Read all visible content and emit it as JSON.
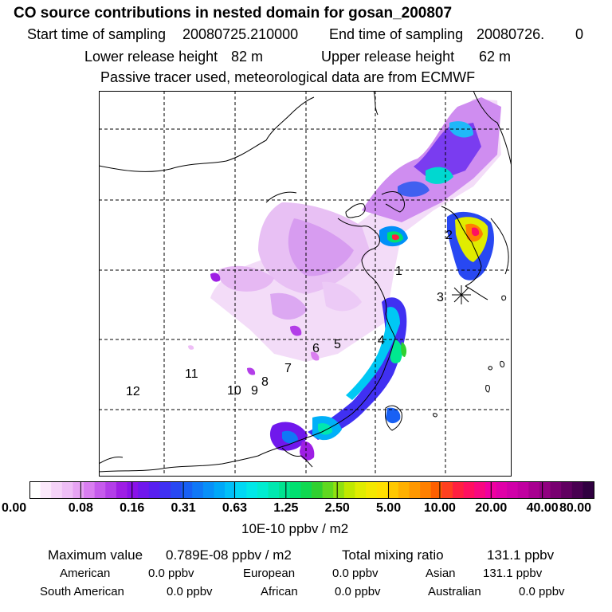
{
  "header": {
    "title": "CO  source contributions in nested domain for gosan_200807",
    "start_label": "Start time of sampling",
    "start_value": "20080725.210000",
    "end_label": "End time of sampling",
    "end_value": "20080726.",
    "end_suffix": "0",
    "lower_label": "Lower release height",
    "lower_value": "82 m",
    "upper_label": "Upper release height",
    "upper_value": "62 m",
    "note": "Passive tracer used, meteorological data are from ECMWF"
  },
  "map": {
    "receptor_label": "3",
    "source_regions": [
      "1",
      "2",
      "3",
      "4",
      "5",
      "6",
      "7",
      "8",
      "9",
      "10",
      "11",
      "12"
    ]
  },
  "colorbar": {
    "tick_labels": [
      "0.00",
      "0.08",
      "0.16",
      "0.31",
      "0.63",
      "1.25",
      "2.50",
      "5.00",
      "10.00",
      "20.00",
      "40.00",
      "80.00"
    ],
    "colors": [
      "#ffffff",
      "#fbe8fb",
      "#f5d3f8",
      "#eebef6",
      "#e6a3f3",
      "#d97ef0",
      "#c65bec",
      "#b33ee8",
      "#9e1ee4",
      "#8a12e8",
      "#7018ec",
      "#5820f0",
      "#4030f2",
      "#2848f2",
      "#1860f4",
      "#1078f6",
      "#0890f8",
      "#00a8f8",
      "#00c0f8",
      "#00d8f4",
      "#00e8e8",
      "#00ecd0",
      "#00e8b0",
      "#00e490",
      "#00e070",
      "#10d850",
      "#30d030",
      "#60d820",
      "#90e010",
      "#c0e800",
      "#e0ec00",
      "#f4e800",
      "#ffe000",
      "#ffc800",
      "#ffb000",
      "#ff9800",
      "#ff8000",
      "#ff6000",
      "#ff4020",
      "#ff2040",
      "#ff1060",
      "#f80880",
      "#f000a0",
      "#e000a8",
      "#d000a8",
      "#c000a0",
      "#a80090",
      "#900080",
      "#780070",
      "#600060",
      "#480050",
      "#300040"
    ],
    "unit": "10E-10 ppbv / m2"
  },
  "summary": {
    "max_label": "Maximum value",
    "max_value": "0.789E-08 ppbv / m2",
    "total_label": "Total mixing ratio",
    "total_value": "131.1 ppbv",
    "regions": [
      {
        "name": "American",
        "value": "0.0 ppbv"
      },
      {
        "name": "European",
        "value": "0.0 ppbv"
      },
      {
        "name": "Asian",
        "value": "131.1 ppbv"
      },
      {
        "name": "South American",
        "value": "0.0 ppbv"
      },
      {
        "name": "African",
        "value": "0.0 ppbv"
      },
      {
        "name": "Australian",
        "value": "0.0 ppbv"
      }
    ]
  }
}
